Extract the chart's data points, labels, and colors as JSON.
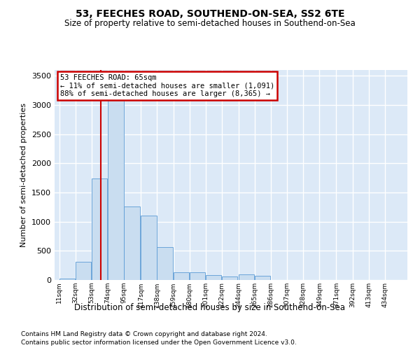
{
  "title": "53, FEECHES ROAD, SOUTHEND-ON-SEA, SS2 6TE",
  "subtitle": "Size of property relative to semi-detached houses in Southend-on-Sea",
  "xlabel": "Distribution of semi-detached houses by size in Southend-on-Sea",
  "ylabel": "Number of semi-detached properties",
  "footnote1": "Contains HM Land Registry data © Crown copyright and database right 2024.",
  "footnote2": "Contains public sector information licensed under the Open Government Licence v3.0.",
  "annotation_title": "53 FEECHES ROAD: 65sqm",
  "annotation_line1": "← 11% of semi-detached houses are smaller (1,091)",
  "annotation_line2": "88% of semi-detached houses are larger (8,365) →",
  "bar_color": "#c9ddf0",
  "bar_edge_color": "#5b9bd5",
  "redline_color": "#cc0000",
  "redline_x": 65,
  "categories": [
    "11sqm",
    "32sqm",
    "53sqm",
    "74sqm",
    "95sqm",
    "117sqm",
    "138sqm",
    "159sqm",
    "180sqm",
    "201sqm",
    "222sqm",
    "244sqm",
    "265sqm",
    "286sqm",
    "307sqm",
    "328sqm",
    "349sqm",
    "371sqm",
    "392sqm",
    "413sqm",
    "434sqm"
  ],
  "bin_left_edges": [
    11,
    32,
    53,
    74,
    95,
    117,
    138,
    159,
    180,
    201,
    222,
    244,
    265,
    286,
    307,
    328,
    349,
    371,
    392,
    413,
    434
  ],
  "bin_width": 21,
  "bar_heights": [
    20,
    310,
    1740,
    3360,
    1260,
    1100,
    560,
    130,
    130,
    90,
    60,
    100,
    70,
    5,
    5,
    5,
    5,
    5,
    5,
    5,
    5
  ],
  "ylim": [
    0,
    3600
  ],
  "yticks": [
    0,
    500,
    1000,
    1500,
    2000,
    2500,
    3000,
    3500
  ],
  "plot_bg": "#dce9f7",
  "fig_bg": "#ffffff",
  "grid_color": "#ffffff",
  "annot_bg": "#ffffff",
  "annot_edge": "#cc0000"
}
